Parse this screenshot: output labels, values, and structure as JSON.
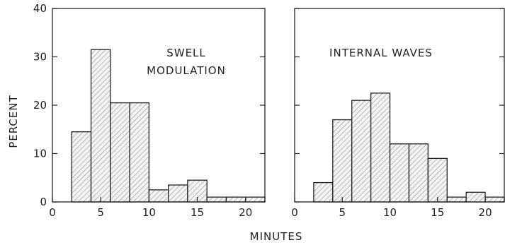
{
  "axis_labels": {
    "x": "MINUTES",
    "y": "PERCENT"
  },
  "chart_data": [
    {
      "type": "bar",
      "title": "SWELL MODULATION",
      "title_lines": [
        "SWELL",
        "MODULATION"
      ],
      "xlabel": "MINUTES",
      "ylabel": "PERCENT",
      "bin_width": 2,
      "bin_starts": [
        2,
        4,
        6,
        8,
        10,
        12,
        14,
        16,
        18,
        20
      ],
      "values": [
        14.5,
        31.5,
        20.5,
        20.5,
        2.5,
        3.5,
        4.5,
        1,
        1,
        1
      ],
      "xlim": [
        0,
        22
      ],
      "ylim": [
        0,
        40
      ],
      "xticks": [
        0,
        5,
        10,
        15,
        20
      ],
      "yticks": [
        0,
        10,
        20,
        30,
        40
      ]
    },
    {
      "type": "bar",
      "title": "INTERNAL WAVES",
      "title_lines": [
        "INTERNAL WAVES"
      ],
      "xlabel": "MINUTES",
      "ylabel": "PERCENT",
      "bin_width": 2,
      "bin_starts": [
        2,
        4,
        6,
        8,
        10,
        12,
        14,
        16,
        18,
        20
      ],
      "values": [
        4,
        17,
        21,
        22.5,
        12,
        12,
        9,
        1,
        2,
        1
      ],
      "xlim": [
        0,
        22
      ],
      "ylim": [
        0,
        40
      ],
      "xticks": [
        0,
        5,
        10,
        15,
        20
      ],
      "yticks": [
        0,
        10,
        20,
        30,
        40
      ]
    }
  ]
}
